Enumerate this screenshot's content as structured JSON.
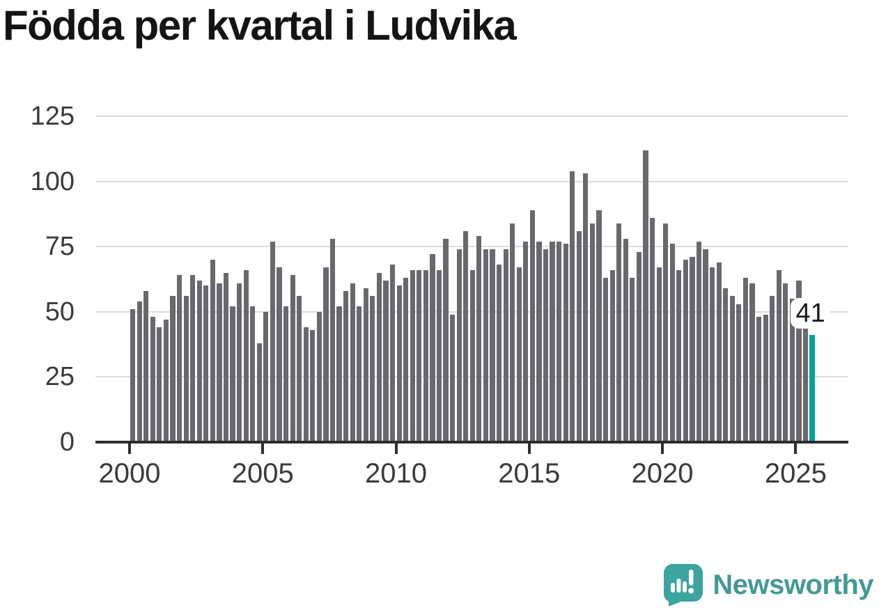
{
  "title": "Födda per kvartal i Ludvika",
  "colors": {
    "bar": "#68696d",
    "highlight": "#00a49d",
    "grid": "#dcdcdc",
    "axis": "#2e2e2e",
    "tick_text": "#3a3a3a",
    "title_text": "#141414",
    "annotation_text": "#1a1a1a",
    "brand_text_teal": "#449996",
    "logo_teal": "#3ba49e",
    "background": "#ffffff"
  },
  "chart_data": {
    "type": "bar",
    "title": "Födda per kvartal i Ludvika",
    "xlabel": "",
    "ylabel": "",
    "ylim": [
      0,
      125
    ],
    "yticks": [
      0,
      25,
      50,
      75,
      100,
      125
    ],
    "xtick_years": [
      2000,
      2005,
      2010,
      2015,
      2020,
      2025
    ],
    "grid": true,
    "legend": "none",
    "highlight_index": 102,
    "annotation": {
      "text": "41",
      "target": "2025 Q3"
    },
    "categories": [
      "2000 Q1",
      "2000 Q2",
      "2000 Q3",
      "2000 Q4",
      "2001 Q1",
      "2001 Q2",
      "2001 Q3",
      "2001 Q4",
      "2002 Q1",
      "2002 Q2",
      "2002 Q3",
      "2002 Q4",
      "2003 Q1",
      "2003 Q2",
      "2003 Q3",
      "2003 Q4",
      "2004 Q1",
      "2004 Q2",
      "2004 Q3",
      "2004 Q4",
      "2005 Q1",
      "2005 Q2",
      "2005 Q3",
      "2005 Q4",
      "2006 Q1",
      "2006 Q2",
      "2006 Q3",
      "2006 Q4",
      "2007 Q1",
      "2007 Q2",
      "2007 Q3",
      "2007 Q4",
      "2008 Q1",
      "2008 Q2",
      "2008 Q3",
      "2008 Q4",
      "2009 Q1",
      "2009 Q2",
      "2009 Q3",
      "2009 Q4",
      "2010 Q1",
      "2010 Q2",
      "2010 Q3",
      "2010 Q4",
      "2011 Q1",
      "2011 Q2",
      "2011 Q3",
      "2011 Q4",
      "2012 Q1",
      "2012 Q2",
      "2012 Q3",
      "2012 Q4",
      "2013 Q1",
      "2013 Q2",
      "2013 Q3",
      "2013 Q4",
      "2014 Q1",
      "2014 Q2",
      "2014 Q3",
      "2014 Q4",
      "2015 Q1",
      "2015 Q2",
      "2015 Q3",
      "2015 Q4",
      "2016 Q1",
      "2016 Q2",
      "2016 Q3",
      "2016 Q4",
      "2017 Q1",
      "2017 Q2",
      "2017 Q3",
      "2017 Q4",
      "2018 Q1",
      "2018 Q2",
      "2018 Q3",
      "2018 Q4",
      "2019 Q1",
      "2019 Q2",
      "2019 Q3",
      "2019 Q4",
      "2020 Q1",
      "2020 Q2",
      "2020 Q3",
      "2020 Q4",
      "2021 Q1",
      "2021 Q2",
      "2021 Q3",
      "2021 Q4",
      "2022 Q1",
      "2022 Q2",
      "2022 Q3",
      "2022 Q4",
      "2023 Q1",
      "2023 Q2",
      "2023 Q3",
      "2023 Q4",
      "2024 Q1",
      "2024 Q2",
      "2024 Q3",
      "2024 Q4",
      "2025 Q1",
      "2025 Q2",
      "2025 Q3"
    ],
    "values": [
      51,
      54,
      58,
      48,
      44,
      47,
      56,
      64,
      56,
      64,
      62,
      60,
      70,
      61,
      65,
      52,
      61,
      66,
      52,
      38,
      50,
      77,
      67,
      52,
      64,
      56,
      44,
      43,
      50,
      67,
      78,
      52,
      58,
      61,
      52,
      59,
      56,
      65,
      62,
      68,
      60,
      63,
      66,
      66,
      66,
      72,
      66,
      78,
      49,
      74,
      81,
      66,
      79,
      74,
      74,
      68,
      74,
      84,
      67,
      77,
      89,
      77,
      74,
      77,
      77,
      76,
      104,
      81,
      103,
      84,
      89,
      63,
      66,
      84,
      78,
      63,
      73,
      112,
      86,
      67,
      84,
      76,
      66,
      70,
      71,
      77,
      74,
      67,
      69,
      59,
      56,
      53,
      63,
      61,
      48,
      49,
      56,
      66,
      61,
      55,
      62,
      45,
      41
    ]
  },
  "footer": {
    "brand": "Newsworthy",
    "logo_icon": "newsworthy-speech-bubble-chart-icon"
  }
}
